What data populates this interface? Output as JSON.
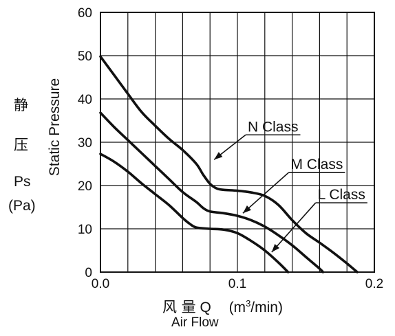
{
  "chart_data": {
    "type": "line",
    "ylabel_cn_1": "静",
    "ylabel_cn_2": "压",
    "ylabel_sym": "Ps",
    "ylabel_unit": "(Pa)",
    "ylabel_en": "Static Pressure",
    "xlabel_cn": "风 量",
    "xlabel_sym": "Q",
    "xlabel_unit_pre": "(m",
    "xlabel_unit_sup": "3",
    "xlabel_unit_post": "/min)",
    "xlabel_en": "Air Flow",
    "xlim": [
      0.0,
      0.2
    ],
    "ylim": [
      0,
      60
    ],
    "x_ticks": [
      0.0,
      0.1,
      0.2
    ],
    "x_tick_labels": [
      "0.0",
      "0.1",
      "0.2"
    ],
    "y_ticks": [
      0,
      10,
      20,
      30,
      40,
      50,
      60
    ],
    "y_tick_labels": [
      "0",
      "10",
      "20",
      "30",
      "40",
      "50",
      "60"
    ],
    "grid": true,
    "x_grid_step": 0.02,
    "y_grid_step": 10,
    "colors": {
      "line": "#111111",
      "grid": "#111111",
      "background": "#ffffff"
    },
    "series": [
      {
        "name": "N Class",
        "points": [
          [
            0.0,
            49.8
          ],
          [
            0.01,
            45.5
          ],
          [
            0.02,
            41.2
          ],
          [
            0.03,
            37.0
          ],
          [
            0.04,
            33.8
          ],
          [
            0.05,
            30.8
          ],
          [
            0.06,
            28.2
          ],
          [
            0.07,
            25.0
          ],
          [
            0.075,
            22.5
          ],
          [
            0.08,
            20.4
          ],
          [
            0.085,
            19.3
          ],
          [
            0.09,
            19.0
          ],
          [
            0.1,
            18.8
          ],
          [
            0.11,
            18.4
          ],
          [
            0.12,
            17.6
          ],
          [
            0.13,
            15.5
          ],
          [
            0.14,
            12.0
          ],
          [
            0.15,
            9.0
          ],
          [
            0.16,
            6.8
          ],
          [
            0.17,
            4.5
          ],
          [
            0.18,
            2.0
          ],
          [
            0.1875,
            0.0
          ]
        ]
      },
      {
        "name": "M Class",
        "points": [
          [
            0.0,
            36.8
          ],
          [
            0.01,
            33.5
          ],
          [
            0.02,
            30.5
          ],
          [
            0.03,
            27.5
          ],
          [
            0.04,
            24.5
          ],
          [
            0.05,
            21.5
          ],
          [
            0.06,
            18.5
          ],
          [
            0.07,
            16.2
          ],
          [
            0.075,
            14.8
          ],
          [
            0.08,
            14.0
          ],
          [
            0.09,
            13.6
          ],
          [
            0.1,
            13.0
          ],
          [
            0.11,
            12.0
          ],
          [
            0.12,
            10.5
          ],
          [
            0.13,
            8.5
          ],
          [
            0.14,
            6.2
          ],
          [
            0.15,
            3.5
          ],
          [
            0.16,
            0.8
          ],
          [
            0.1625,
            0.0
          ]
        ]
      },
      {
        "name": "L Class",
        "points": [
          [
            0.0,
            27.3
          ],
          [
            0.01,
            25.5
          ],
          [
            0.02,
            23.2
          ],
          [
            0.03,
            20.5
          ],
          [
            0.04,
            18.0
          ],
          [
            0.05,
            15.5
          ],
          [
            0.06,
            12.5
          ],
          [
            0.065,
            11.2
          ],
          [
            0.07,
            10.3
          ],
          [
            0.08,
            10.0
          ],
          [
            0.09,
            9.8
          ],
          [
            0.1,
            9.0
          ],
          [
            0.11,
            7.2
          ],
          [
            0.12,
            5.0
          ],
          [
            0.13,
            2.2
          ],
          [
            0.137,
            0.0
          ]
        ]
      }
    ],
    "annotations": [
      {
        "text": "N Class",
        "text_x": 0.126,
        "text_y": 32.5,
        "arrow_to": [
          0.083,
          26.0
        ]
      },
      {
        "text": "M Class",
        "text_x": 0.158,
        "text_y": 23.8,
        "arrow_to": [
          0.104,
          13.6
        ]
      },
      {
        "text": "L Class",
        "text_x": 0.176,
        "text_y": 16.8,
        "arrow_to": [
          0.125,
          4.6
        ]
      }
    ]
  }
}
